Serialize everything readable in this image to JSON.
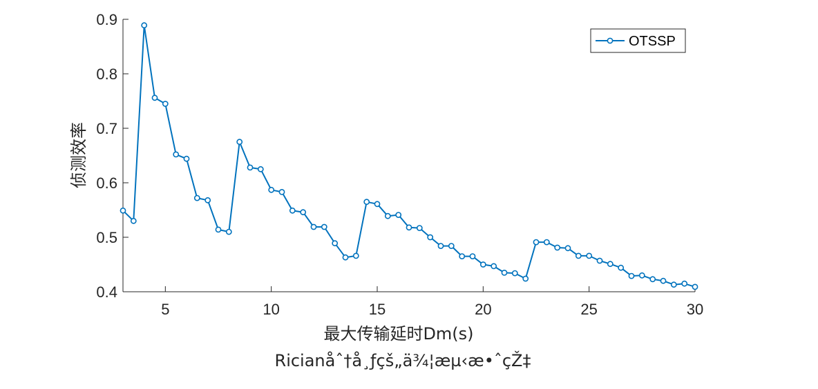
{
  "chart_data": {
    "type": "line",
    "title": "",
    "caption": "Ricianåˆ†å¸ƒçš„ä¾¦æµ‹æ•ˆçŽ‡",
    "xlabel": "最大传输延时Dm(s)",
    "ylabel": "侦测效率",
    "xlim": [
      3,
      30
    ],
    "ylim": [
      0.4,
      0.9
    ],
    "xticks": [
      5,
      10,
      15,
      20,
      25,
      30
    ],
    "yticks": [
      0.4,
      0.5,
      0.6,
      0.7,
      0.8,
      0.9
    ],
    "xtick_labels": [
      "5",
      "10",
      "15",
      "20",
      "25",
      "30"
    ],
    "ytick_labels": [
      "0.4",
      "0.5",
      "0.6",
      "0.7",
      "0.8",
      "0.9"
    ],
    "grid": false,
    "legend_position": "top-right",
    "series": [
      {
        "name": "OTSSP",
        "color": "#0072BD",
        "marker": "circle",
        "x": [
          3,
          3.5,
          4,
          4.5,
          5,
          5.5,
          6,
          6.5,
          7,
          7.5,
          8,
          8.5,
          9,
          9.5,
          10,
          10.5,
          11,
          11.5,
          12,
          12.5,
          13,
          13.5,
          14,
          14.5,
          15,
          15.5,
          16,
          16.5,
          17,
          17.5,
          18,
          18.5,
          19,
          19.5,
          20,
          20.5,
          21,
          21.5,
          22,
          22.5,
          23,
          23.5,
          24,
          24.5,
          25,
          25.5,
          26,
          26.5,
          27,
          27.5,
          28,
          28.5,
          29,
          29.5,
          30
        ],
        "y": [
          0.549,
          0.53,
          0.889,
          0.756,
          0.745,
          0.652,
          0.644,
          0.572,
          0.568,
          0.514,
          0.51,
          0.675,
          0.628,
          0.625,
          0.587,
          0.583,
          0.549,
          0.546,
          0.519,
          0.519,
          0.489,
          0.463,
          0.466,
          0.565,
          0.561,
          0.539,
          0.541,
          0.518,
          0.517,
          0.5,
          0.484,
          0.484,
          0.465,
          0.465,
          0.45,
          0.447,
          0.435,
          0.434,
          0.424,
          0.491,
          0.491,
          0.481,
          0.48,
          0.466,
          0.466,
          0.457,
          0.451,
          0.444,
          0.429,
          0.43,
          0.423,
          0.42,
          0.413,
          0.415,
          0.409
        ]
      }
    ]
  }
}
